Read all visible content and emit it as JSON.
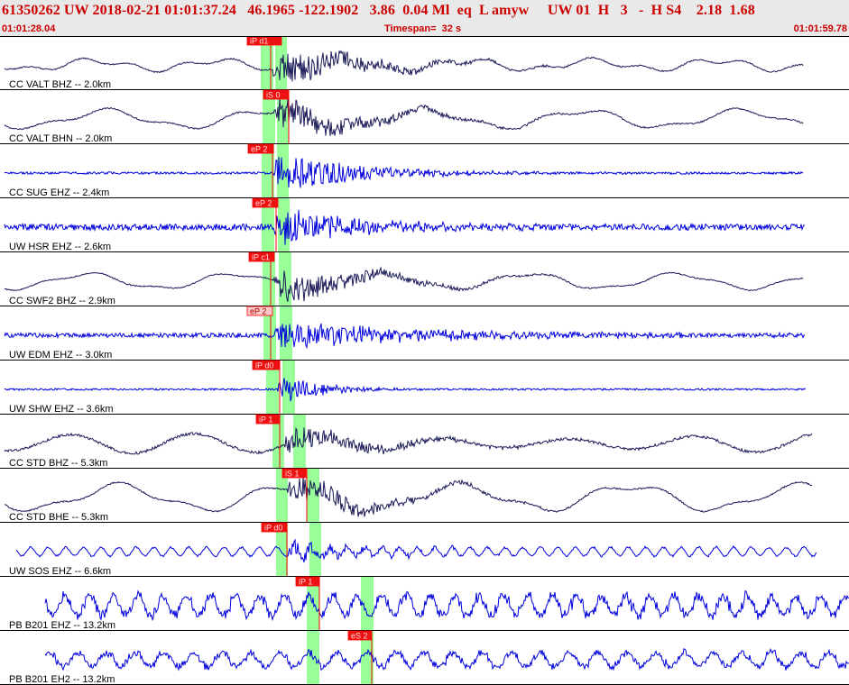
{
  "header": {
    "title": "61350262 UW 2018-02-21 01:01:37.24   46.1965 -122.1902   3.86  0.04 Ml  eq  L amyw     UW 01  H   3   -  H S4    2.18  1.68",
    "start_time": "01:01:28.04",
    "timespan": "Timespan=  32 s",
    "end_time": "01:01:59.78"
  },
  "colors": {
    "broadband": "#1b1b5a",
    "short_period": "#0000dd",
    "pick": "#ff0000",
    "pick_label_bg": "#ee1111",
    "pick_label_weak_bg": "#ffc8c8",
    "phase_window": "#99ff99",
    "separator": "#000000"
  },
  "channels": [
    {
      "label": "CC VALT BHZ -- 2.0km",
      "type": "broadband",
      "pick": "iP d1",
      "pick_weak": false
    },
    {
      "label": "CC VALT BHN -- 2.0km",
      "type": "broadband",
      "pick": "iS 0",
      "pick_weak": false
    },
    {
      "label": "CC SUG EHZ -- 2.4km",
      "type": "short_period",
      "pick": "eP 2",
      "pick_weak": false
    },
    {
      "label": "UW HSR EHZ -- 2.6km",
      "type": "short_period",
      "pick": "eP 2",
      "pick_weak": false
    },
    {
      "label": "CC SWF2 BHZ -- 2.9km",
      "type": "broadband",
      "pick": "iP c1",
      "pick_weak": false
    },
    {
      "label": "UW EDM EHZ -- 3.0km",
      "type": "short_period",
      "pick": "eP 2",
      "pick_weak": true
    },
    {
      "label": "UW SHW EHZ -- 3.6km",
      "type": "short_period",
      "pick": "iP d0",
      "pick_weak": false
    },
    {
      "label": "CC STD BHZ -- 5.3km",
      "type": "broadband",
      "pick": "iP 1",
      "pick_weak": false
    },
    {
      "label": "CC STD BHE -- 5.3km",
      "type": "broadband",
      "pick": "iS 1",
      "pick_weak": false
    },
    {
      "label": "UW SOS EHZ -- 6.6km",
      "type": "short_period",
      "pick": "iP d0",
      "pick_weak": false
    },
    {
      "label": "PB B201 EHZ -- 13.2km",
      "type": "short_period",
      "pick": "iP 1",
      "pick_weak": false
    },
    {
      "label": "PB B201 EH2 -- 13.2km",
      "type": "short_period",
      "pick": "eS 2",
      "pick_weak": false
    }
  ]
}
